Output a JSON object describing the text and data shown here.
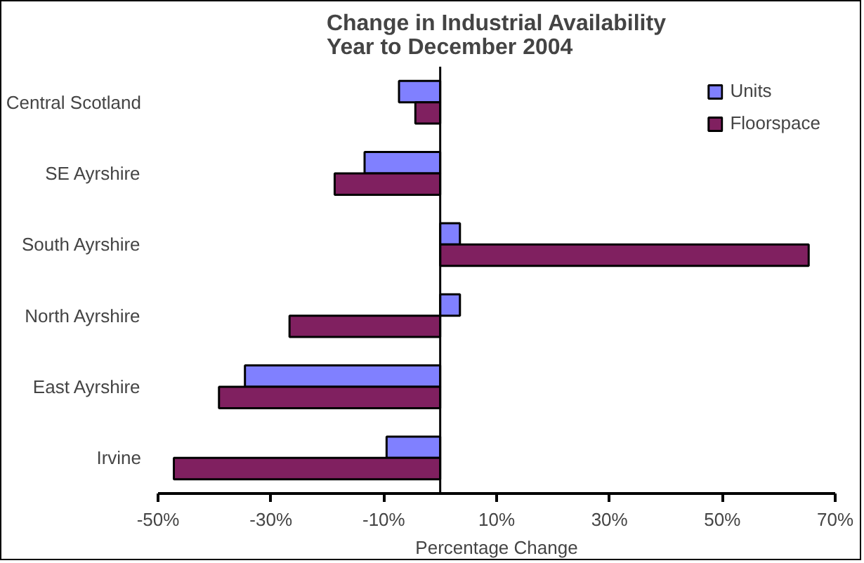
{
  "chart_data": {
    "type": "bar",
    "orientation": "horizontal",
    "title": "Change in Industrial Availability\nYear to December 2004",
    "xlabel": "Percentage Change",
    "categories": [
      "Central Scotland",
      "SE Ayrshire",
      "South Ayrshire",
      "North Ayrshire",
      "East Ayrshire",
      "Irvine"
    ],
    "series": [
      {
        "name": "Units",
        "color": "#8080ff",
        "values": [
          -7.3,
          -13.4,
          3.5,
          3.5,
          -34.6,
          -9.5
        ]
      },
      {
        "name": "Floorspace",
        "color": "#802060",
        "values": [
          -4.4,
          -18.7,
          65.3,
          -26.7,
          -39.2,
          -47.2
        ]
      }
    ],
    "xlim": [
      -50,
      70
    ],
    "xticks": [
      {
        "value": -50,
        "label": "-50%"
      },
      {
        "value": -30,
        "label": "-30%"
      },
      {
        "value": -10,
        "label": "-10%"
      },
      {
        "value": 10,
        "label": "10%"
      },
      {
        "value": 30,
        "label": "30%"
      },
      {
        "value": 50,
        "label": "50%"
      },
      {
        "value": 70,
        "label": "70%"
      }
    ],
    "grid": false,
    "legend": "top right"
  }
}
